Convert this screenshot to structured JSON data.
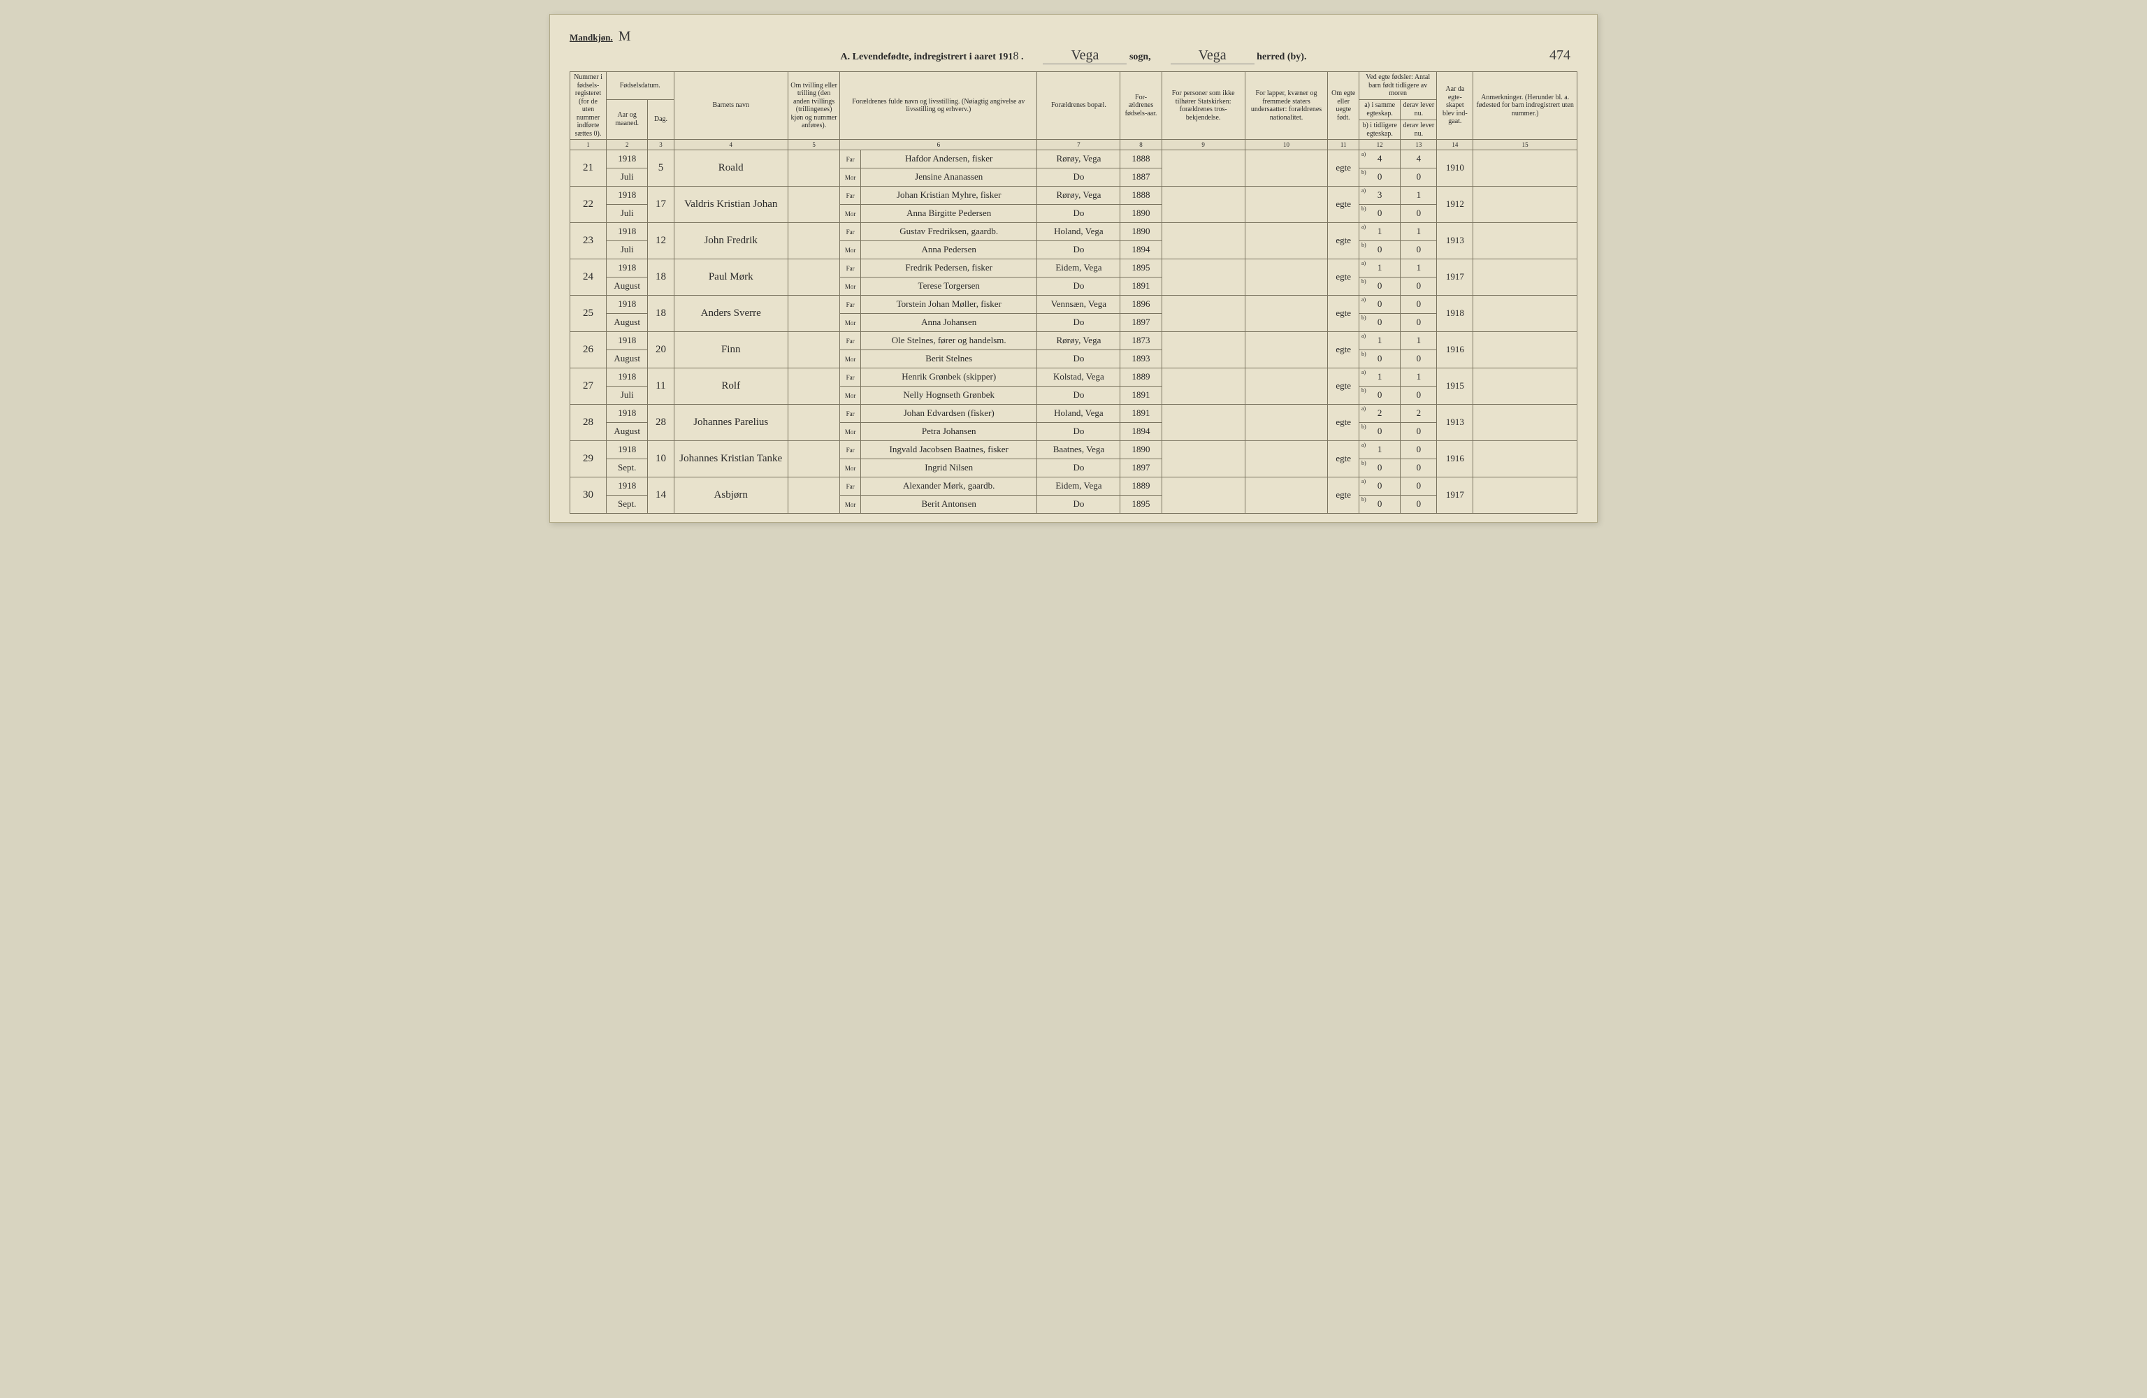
{
  "header": {
    "mandkjon_label": "Mandkjøn.",
    "mandkjon_val": "M",
    "title_prefix": "A. Levendefødte, indregistrert i aaret 191",
    "year_suffix": "8",
    "sogn_label": "sogn,",
    "sogn_val": "Vega",
    "herred_label": "herred (by).",
    "herred_val": "Vega",
    "page_num": "474"
  },
  "columns": {
    "c1": "Nummer i fødsels-registeret (for de uten nummer indførte sættes 0).",
    "c2_top": "Fødselsdatum.",
    "c2": "Aar og maaned.",
    "c3": "Dag.",
    "c4": "Barnets navn",
    "c5": "Om tvilling eller trilling (den anden tvillings (trillingenes) kjøn og nummer anføres).",
    "c6": "Forældrenes fulde navn og livsstilling. (Nøiagtig angivelse av livsstilling og erhverv.)",
    "c7": "Forældrenes bopæl.",
    "c8": "For-ældrenes fødsels-aar.",
    "c9": "For personer som ikke tilhører Statskirken: forældrenes tros-bekjendelse.",
    "c10": "For lapper, kvæner og fremmede staters undersaatter: forældrenes nationalitet.",
    "c11": "Om egte eller uegte født.",
    "c12_top": "Ved egte fødsler: Antal barn født tidligere av moren",
    "c12a": "a) i samme egteskap.",
    "c12b": "b) i tidligere egteskap.",
    "c13_top": "",
    "c13a": "derav lever nu.",
    "c13b": "derav lever nu.",
    "c14": "Aar da egte-skapet blev ind-gaat.",
    "c15": "Anmerkninger. (Herunder bl. a. fødested for barn indregistrert uten nummer.)"
  },
  "colnums": [
    "1",
    "2",
    "3",
    "4",
    "5",
    "6",
    "7",
    "8",
    "9",
    "10",
    "11",
    "12",
    "13",
    "14",
    "15"
  ],
  "rows": [
    {
      "num": "21",
      "year": "1918",
      "month": "Juli",
      "day": "5",
      "name": "Roald",
      "far": "Hafdor Andersen, fisker",
      "mor": "Jensine Ananassen",
      "bopal_far": "Rørøy, Vega",
      "bopal_mor": "Do",
      "faar_far": "1888",
      "faar_mor": "1887",
      "egte": "egte",
      "a12": "4",
      "b12": "0",
      "a13": "4",
      "b13": "0",
      "married": "1910"
    },
    {
      "num": "22",
      "year": "1918",
      "month": "Juli",
      "day": "17",
      "name": "Valdris Kristian Johan",
      "far": "Johan Kristian Myhre, fisker",
      "mor": "Anna Birgitte Pedersen",
      "bopal_far": "Rørøy, Vega",
      "bopal_mor": "Do",
      "faar_far": "1888",
      "faar_mor": "1890",
      "egte": "egte",
      "a12": "3",
      "b12": "0",
      "a13": "1",
      "b13": "0",
      "married": "1912"
    },
    {
      "num": "23",
      "year": "1918",
      "month": "Juli",
      "day": "12",
      "name": "John Fredrik",
      "far": "Gustav Fredriksen, gaardb.",
      "mor": "Anna Pedersen",
      "bopal_far": "Holand, Vega",
      "bopal_mor": "Do",
      "faar_far": "1890",
      "faar_mor": "1894",
      "egte": "egte",
      "a12": "1",
      "b12": "0",
      "a13": "1",
      "b13": "0",
      "married": "1913"
    },
    {
      "num": "24",
      "year": "1918",
      "month": "August",
      "day": "18",
      "name": "Paul Mørk",
      "far": "Fredrik Pedersen, fisker",
      "mor": "Terese Torgersen",
      "bopal_far": "Eidem, Vega",
      "bopal_mor": "Do",
      "faar_far": "1895",
      "faar_mor": "1891",
      "egte": "egte",
      "a12": "1",
      "b12": "0",
      "a13": "1",
      "b13": "0",
      "married": "1917"
    },
    {
      "num": "25",
      "year": "1918",
      "month": "August",
      "day": "18",
      "name": "Anders Sverre",
      "far": "Torstein Johan Møller, fisker",
      "mor": "Anna Johansen",
      "bopal_far": "Vennsæn, Vega",
      "bopal_mor": "Do",
      "faar_far": "1896",
      "faar_mor": "1897",
      "egte": "egte",
      "a12": "0",
      "b12": "0",
      "a13": "0",
      "b13": "0",
      "married": "1918"
    },
    {
      "num": "26",
      "year": "1918",
      "month": "August",
      "day": "20",
      "name": "Finn",
      "far": "Ole Stelnes, fører og handelsm.",
      "mor": "Berit Stelnes",
      "bopal_far": "Rørøy, Vega",
      "bopal_mor": "Do",
      "faar_far": "1873",
      "faar_mor": "1893",
      "egte": "egte",
      "a12": "1",
      "b12": "0",
      "a13": "1",
      "b13": "0",
      "married": "1916"
    },
    {
      "num": "27",
      "year": "1918",
      "month": "Juli",
      "day": "11",
      "name": "Rolf",
      "far": "Henrik Grønbek (skipper)",
      "mor": "Nelly Hognseth Grønbek",
      "bopal_far": "Kolstad, Vega",
      "bopal_mor": "Do",
      "faar_far": "1889",
      "faar_mor": "1891",
      "egte": "egte",
      "a12": "1",
      "b12": "0",
      "a13": "1",
      "b13": "0",
      "married": "1915"
    },
    {
      "num": "28",
      "year": "1918",
      "month": "August",
      "day": "28",
      "name": "Johannes Parelius",
      "far": "Johan Edvardsen (fisker)",
      "mor": "Petra Johansen",
      "bopal_far": "Holand, Vega",
      "bopal_mor": "Do",
      "faar_far": "1891",
      "faar_mor": "1894",
      "egte": "egte",
      "a12": "2",
      "b12": "0",
      "a13": "2",
      "b13": "0",
      "married": "1913"
    },
    {
      "num": "29",
      "year": "1918",
      "month": "Sept.",
      "day": "10",
      "name": "Johannes Kristian Tanke",
      "far": "Ingvald Jacobsen Baatnes, fisker",
      "mor": "Ingrid Nilsen",
      "bopal_far": "Baatnes, Vega",
      "bopal_mor": "Do",
      "faar_far": "1890",
      "faar_mor": "1897",
      "egte": "egte",
      "a12": "1",
      "b12": "0",
      "a13": "0",
      "b13": "0",
      "married": "1916"
    },
    {
      "num": "30",
      "year": "1918",
      "month": "Sept.",
      "day": "14",
      "name": "Asbjørn",
      "far": "Alexander Mørk, gaardb.",
      "mor": "Berit Antonsen",
      "bopal_far": "Eidem, Vega",
      "bopal_mor": "Do",
      "faar_far": "1889",
      "faar_mor": "1895",
      "egte": "egte",
      "a12": "0",
      "b12": "0",
      "a13": "0",
      "b13": "0",
      "married": "1917"
    }
  ],
  "style": {
    "page_bg": "#e8e2cc",
    "border_color": "#7a7460",
    "handwriting_color": "#3a3a3a",
    "text_color": "#2a2a2a",
    "header_font_size_pt": 10,
    "body_font_size_pt": 10,
    "handwriting_font_size_pt": 15
  }
}
